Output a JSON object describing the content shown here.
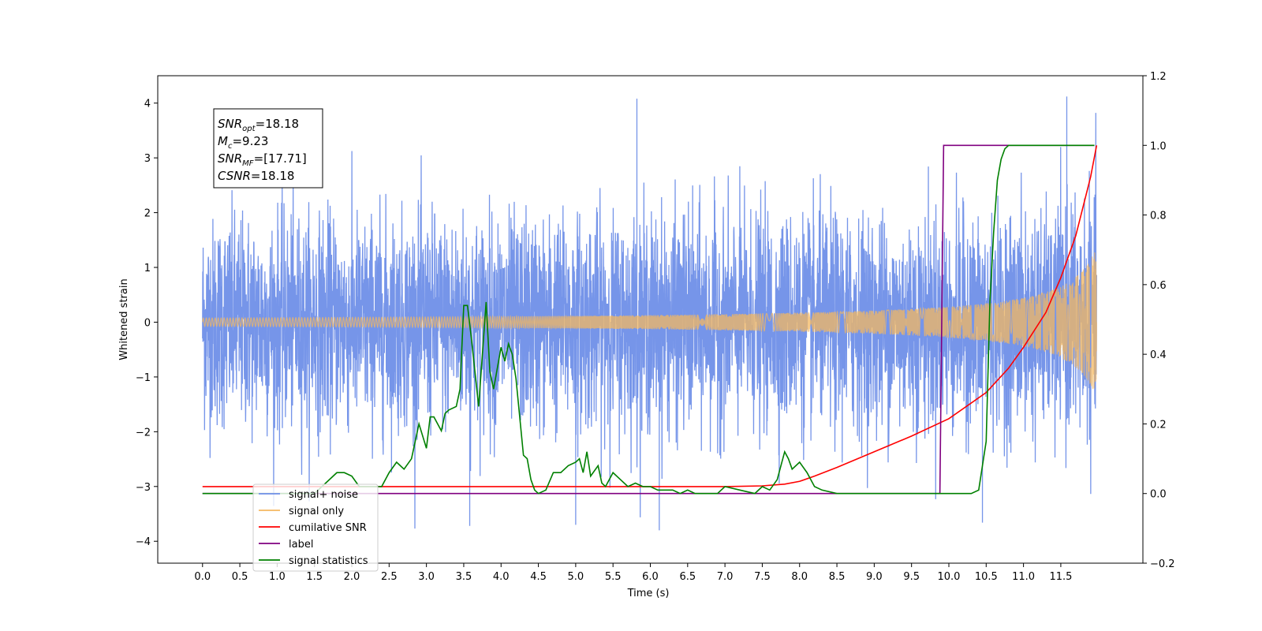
{
  "chart_data": {
    "type": "line",
    "xlabel": "Time (s)",
    "ylabel": "Whitened strain",
    "xlim": [
      -0.6,
      12.6
    ],
    "ylim_left": [
      -4.4,
      4.5
    ],
    "ylim_right": [
      -0.2,
      1.2
    ],
    "x_ticks": [
      0.0,
      0.5,
      1.0,
      1.5,
      2.0,
      2.5,
      3.0,
      3.5,
      4.0,
      4.5,
      5.0,
      5.5,
      6.0,
      6.5,
      7.0,
      7.5,
      8.0,
      8.5,
      9.0,
      9.5,
      10.0,
      10.5,
      11.0,
      11.5
    ],
    "x_tick_labels": [
      "0.0",
      "0.5",
      "1.0",
      "1.5",
      "2.0",
      "2.5",
      "3.0",
      "3.5",
      "4.0",
      "4.5",
      "5.0",
      "5.5",
      "6.0",
      "6.5",
      "7.0",
      "7.5",
      "8.0",
      "8.5",
      "9.0",
      "9.5",
      "10.0",
      "10.5",
      "11.0",
      "11.5"
    ],
    "y_left_ticks": [
      -4,
      -3,
      -2,
      -1,
      0,
      1,
      2,
      3,
      4
    ],
    "y_left_tick_labels": [
      "−4",
      "−3",
      "−2",
      "−1",
      "0",
      "1",
      "2",
      "3",
      "4"
    ],
    "y_right_ticks": [
      -0.2,
      0.0,
      0.2,
      0.4,
      0.6,
      0.8,
      1.0,
      1.2
    ],
    "y_right_tick_labels": [
      "−0.2",
      "0.0",
      "0.2",
      "0.4",
      "0.6",
      "0.8",
      "1.0",
      "1.2"
    ],
    "grid": false,
    "legend_position": "lower-left",
    "annotation": {
      "lines": [
        {
          "main": "SNR",
          "sub": "opt",
          "rest": "=18.18"
        },
        {
          "main": "M",
          "sub": "c",
          "rest": "=9.23"
        },
        {
          "main": "SNR",
          "sub": "MF",
          "rest": "=[17.71]"
        },
        {
          "main": "CSNR",
          "sub": "",
          "rest": "=18.18"
        }
      ]
    },
    "series": [
      {
        "name": "signal+ noise",
        "axis": "left",
        "color": "#6f8fe8",
        "style": "noise",
        "x_range": [
          0.0,
          11.98
        ],
        "typical_amplitude": 1.0,
        "peak_high": 4.12,
        "peak_low": -3.8,
        "peaks": [
          [
            5.82,
            4.08
          ],
          [
            11.58,
            4.12
          ],
          [
            3.58,
            -3.72
          ],
          [
            6.12,
            -3.8
          ],
          [
            5.0,
            -3.7
          ],
          [
            10.45,
            -3.66
          ]
        ]
      },
      {
        "name": "signal only",
        "axis": "left",
        "color": "#f4b860",
        "style": "chirp",
        "x_range": [
          0.0,
          11.98
        ],
        "final_amplitude": 1.38
      },
      {
        "name": "cumilative SNR",
        "axis": "right",
        "color": "#ff0000",
        "x": [
          0.0,
          1.0,
          2.0,
          3.0,
          4.0,
          5.0,
          6.0,
          7.0,
          7.5,
          7.8,
          8.0,
          8.2,
          8.5,
          9.0,
          9.5,
          10.0,
          10.5,
          10.8,
          11.0,
          11.3,
          11.5,
          11.7,
          11.9,
          11.98
        ],
        "y": [
          0.02,
          0.02,
          0.02,
          0.02,
          0.02,
          0.02,
          0.02,
          0.02,
          0.022,
          0.027,
          0.035,
          0.05,
          0.075,
          0.12,
          0.165,
          0.215,
          0.29,
          0.36,
          0.42,
          0.52,
          0.62,
          0.74,
          0.91,
          1.0
        ]
      },
      {
        "name": "label",
        "axis": "right",
        "color": "#800080",
        "x": [
          0.0,
          9.88,
          9.93,
          11.95
        ],
        "y": [
          0.0,
          0.0,
          1.0,
          1.0
        ]
      },
      {
        "name": "signal statistics",
        "axis": "right",
        "color": "#008000",
        "x": [
          0.0,
          1.0,
          1.5,
          1.8,
          1.9,
          2.0,
          2.1,
          2.2,
          2.3,
          2.4,
          2.5,
          2.6,
          2.7,
          2.8,
          2.9,
          3.0,
          3.05,
          3.1,
          3.2,
          3.25,
          3.3,
          3.4,
          3.45,
          3.5,
          3.55,
          3.6,
          3.7,
          3.8,
          3.85,
          3.9,
          4.0,
          4.05,
          4.1,
          4.15,
          4.2,
          4.3,
          4.35,
          4.4,
          4.45,
          4.5,
          4.6,
          4.7,
          4.8,
          4.9,
          5.0,
          5.05,
          5.1,
          5.15,
          5.2,
          5.3,
          5.35,
          5.4,
          5.5,
          5.6,
          5.7,
          5.8,
          5.9,
          6.0,
          6.1,
          6.2,
          6.3,
          6.4,
          6.5,
          6.6,
          6.7,
          6.8,
          6.9,
          7.0,
          7.2,
          7.4,
          7.5,
          7.6,
          7.7,
          7.8,
          7.85,
          7.9,
          8.0,
          8.1,
          8.2,
          8.3,
          8.5,
          9.0,
          9.5,
          10.0,
          10.3,
          10.4,
          10.5,
          10.55,
          10.6,
          10.65,
          10.7,
          10.75,
          10.8,
          10.9,
          11.0,
          11.95
        ],
        "y": [
          0.0,
          0.0,
          0.0,
          0.06,
          0.06,
          0.05,
          0.02,
          0.02,
          0.02,
          0.02,
          0.06,
          0.09,
          0.07,
          0.1,
          0.2,
          0.13,
          0.22,
          0.22,
          0.18,
          0.23,
          0.24,
          0.25,
          0.3,
          0.54,
          0.54,
          0.45,
          0.25,
          0.55,
          0.35,
          0.3,
          0.42,
          0.38,
          0.43,
          0.4,
          0.33,
          0.11,
          0.1,
          0.04,
          0.01,
          0.0,
          0.01,
          0.06,
          0.06,
          0.08,
          0.09,
          0.1,
          0.06,
          0.12,
          0.05,
          0.08,
          0.03,
          0.02,
          0.06,
          0.04,
          0.02,
          0.03,
          0.02,
          0.02,
          0.01,
          0.01,
          0.01,
          0.0,
          0.01,
          0.0,
          0.0,
          0.0,
          0.0,
          0.02,
          0.01,
          0.0,
          0.02,
          0.01,
          0.04,
          0.12,
          0.1,
          0.07,
          0.09,
          0.06,
          0.02,
          0.01,
          0.0,
          0.0,
          0.0,
          0.0,
          0.0,
          0.01,
          0.15,
          0.55,
          0.75,
          0.9,
          0.96,
          0.99,
          1.0,
          1.0,
          1.0,
          1.0
        ]
      }
    ]
  }
}
